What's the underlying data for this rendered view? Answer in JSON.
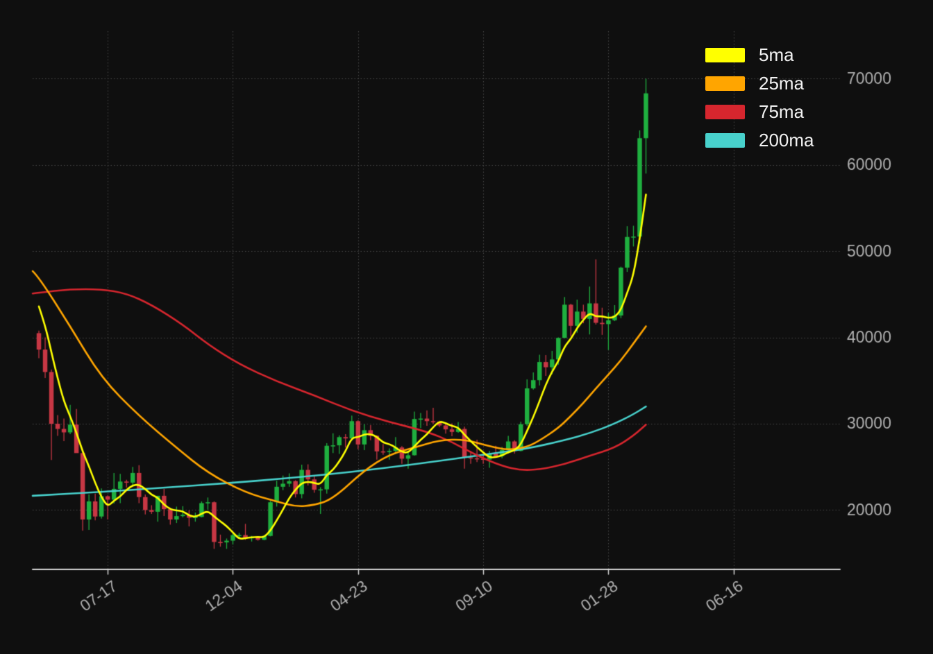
{
  "colors": {
    "background": "#0f0f0f",
    "grid": "#4a4a4a",
    "axis_spine": "#d4d4d4",
    "tick_label": "#b0b0b0",
    "legend_text": "#f2f2f2",
    "candle_up": "#1faf3f",
    "candle_down": "#c73744"
  },
  "chart_data": {
    "type": "candlestick",
    "title": "",
    "legend_position": "top-right",
    "x_axis": {
      "tick_labels": [
        "07-17",
        "12-04",
        "04-23",
        "09-10",
        "01-28",
        "06-16"
      ],
      "tick_indices": [
        11,
        31,
        51,
        71,
        91,
        111
      ],
      "index_range": [
        -1,
        128
      ],
      "tick_label_rotation_deg": 35
    },
    "y_axis": {
      "ticks": [
        20000,
        30000,
        40000,
        50000,
        60000,
        70000
      ],
      "range": [
        13200,
        75500
      ],
      "side": "right"
    },
    "candles": {
      "ohlc": [
        [
          40500,
          40800,
          37600,
          38600
        ],
        [
          38600,
          40000,
          35300,
          36000
        ],
        [
          36000,
          36300,
          25800,
          30000
        ],
        [
          30000,
          31000,
          28600,
          29400
        ],
        [
          29400,
          30600,
          28000,
          29000
        ],
        [
          29000,
          32200,
          28800,
          29900
        ],
        [
          29900,
          31700,
          26800,
          26600
        ],
        [
          26600,
          26800,
          17600,
          18900
        ],
        [
          18900,
          21800,
          17700,
          21000
        ],
        [
          21000,
          21900,
          18800,
          19250
        ],
        [
          19250,
          22500,
          19000,
          21600
        ],
        [
          21600,
          21700,
          18900,
          21200
        ],
        [
          21200,
          24300,
          20750,
          22450
        ],
        [
          22450,
          24200,
          20800,
          23300
        ],
        [
          23300,
          23500,
          22600,
          23175
        ],
        [
          23175,
          25000,
          22700,
          24300
        ],
        [
          24300,
          25200,
          20800,
          21500
        ],
        [
          21500,
          21800,
          19500,
          20000
        ],
        [
          20000,
          20550,
          19550,
          19800
        ],
        [
          19800,
          21650,
          18650,
          21650
        ],
        [
          21650,
          22450,
          19300,
          20100
        ],
        [
          20100,
          20150,
          18300,
          18900
        ],
        [
          18900,
          20400,
          18500,
          19300
        ],
        [
          19300,
          20450,
          19150,
          19450
        ],
        [
          19450,
          19950,
          18100,
          19100
        ],
        [
          19100,
          19700,
          18650,
          19200
        ],
        [
          19200,
          21000,
          19150,
          20800
        ],
        [
          20800,
          21450,
          20050,
          20900
        ],
        [
          20900,
          21000,
          15500,
          16300
        ],
        [
          16300,
          17150,
          15750,
          16250
        ],
        [
          16250,
          16700,
          15500,
          16450
        ],
        [
          16450,
          17400,
          16000,
          17100
        ],
        [
          17100,
          17350,
          16700,
          17100
        ],
        [
          17100,
          18400,
          16550,
          16750
        ],
        [
          16750,
          17000,
          16350,
          16850
        ],
        [
          16850,
          16970,
          16450,
          16550
        ],
        [
          16550,
          17050,
          16500,
          17000
        ],
        [
          17000,
          21050,
          16950,
          20900
        ],
        [
          20900,
          23400,
          20400,
          22700
        ],
        [
          22700,
          24000,
          22300,
          23050
        ],
        [
          23050,
          24250,
          22700,
          23350
        ],
        [
          23350,
          23450,
          21450,
          21850
        ],
        [
          21850,
          25250,
          21350,
          24650
        ],
        [
          24650,
          25300,
          22850,
          23550
        ],
        [
          23550,
          23900,
          22000,
          22350
        ],
        [
          22350,
          22650,
          19550,
          22400
        ],
        [
          22400,
          27750,
          21900,
          27450
        ],
        [
          27450,
          28900,
          26600,
          27500
        ],
        [
          27500,
          28650,
          26500,
          28450
        ],
        [
          28450,
          28800,
          27250,
          28300
        ],
        [
          28300,
          30950,
          28100,
          30300
        ],
        [
          30300,
          30400,
          27050,
          27600
        ],
        [
          27600,
          29950,
          26950,
          29250
        ],
        [
          29250,
          29850,
          28100,
          28600
        ],
        [
          28600,
          28650,
          25850,
          26800
        ],
        [
          26800,
          27650,
          26400,
          26750
        ],
        [
          26750,
          27150,
          25850,
          26850
        ],
        [
          26850,
          28450,
          26500,
          27250
        ],
        [
          27250,
          27400,
          25350,
          25950
        ],
        [
          25950,
          26800,
          24800,
          26350
        ],
        [
          26350,
          31400,
          26300,
          30550
        ],
        [
          30550,
          31250,
          29500,
          30600
        ],
        [
          30600,
          31550,
          29750,
          30300
        ],
        [
          30300,
          31850,
          30000,
          30250
        ],
        [
          30250,
          30350,
          29600,
          29800
        ],
        [
          29800,
          30100,
          28850,
          29350
        ],
        [
          29350,
          30050,
          28550,
          29050
        ],
        [
          29050,
          30200,
          28950,
          29400
        ],
        [
          29400,
          29650,
          24800,
          26100
        ],
        [
          26100,
          26850,
          25350,
          26000
        ],
        [
          26000,
          28150,
          25550,
          25950
        ],
        [
          25950,
          26450,
          25350,
          25850
        ],
        [
          25850,
          26850,
          24900,
          26550
        ],
        [
          26550,
          27450,
          26100,
          26250
        ],
        [
          26250,
          27300,
          26000,
          26950
        ],
        [
          26950,
          28600,
          26550,
          27950
        ],
        [
          27950,
          28100,
          26550,
          26850
        ],
        [
          26850,
          30250,
          26800,
          29950
        ],
        [
          29950,
          35150,
          29750,
          34100
        ],
        [
          34100,
          35950,
          33950,
          35050
        ],
        [
          35050,
          38000,
          34450,
          37150
        ],
        [
          37150,
          37950,
          35550,
          36550
        ],
        [
          36550,
          38450,
          35750,
          37450
        ],
        [
          37450,
          40000,
          36850,
          39950
        ],
        [
          39950,
          44700,
          39950,
          43800
        ],
        [
          43800,
          43900,
          40150,
          41350
        ],
        [
          41350,
          44400,
          40550,
          43000
        ],
        [
          43000,
          43800,
          41650,
          42150
        ],
        [
          42150,
          45900,
          40350,
          43950
        ],
        [
          43950,
          49050,
          41500,
          41700
        ],
        [
          41700,
          43450,
          40300,
          41550
        ],
        [
          41550,
          42850,
          38550,
          42000
        ],
        [
          42000,
          43750,
          41900,
          42550
        ],
        [
          42550,
          48200,
          42250,
          48100
        ],
        [
          48100,
          52900,
          47600,
          51650
        ],
        [
          51650,
          52950,
          50550,
          51700
        ],
        [
          51700,
          64000,
          50900,
          63100
        ],
        [
          63100,
          69990,
          59000,
          68300
        ]
      ]
    },
    "ma_series": [
      {
        "name": "5ma",
        "color": "#ffff00",
        "width": 2.6,
        "values_start_index": 0,
        "values": [
          43600,
          41440,
          38280,
          35260,
          32600,
          30860,
          28980,
          26760,
          25080,
          23130,
          21470,
          20390,
          21100,
          21560,
          22345,
          22885,
          22945,
          22455,
          21755,
          21450,
          20610,
          20090,
          19950,
          19880,
          19370,
          19190,
          19570,
          19890,
          19260,
          18690,
          18140,
          17400,
          16640,
          16730,
          16850,
          16870,
          16850,
          17610,
          18800,
          20040,
          21400,
          22370,
          23120,
          23290,
          23150,
          22960,
          24080,
          24650,
          25630,
          26820,
          28400,
          28430,
          28780,
          28810,
          28510,
          27800,
          27650,
          27250,
          26720,
          26630,
          27390,
          28140,
          28750,
          29610,
          30300,
          30060,
          29750,
          29570,
          28740,
          27980,
          27300,
          26660,
          26090,
          26120,
          26310,
          26710,
          26910,
          27590,
          29160,
          30780,
          32620,
          34560,
          36060,
          37230,
          38980,
          39820,
          41110,
          42050,
          42850,
          42430,
          42470,
          42270,
          42350,
          43180,
          45170,
          47200,
          51420,
          56570
        ]
      },
      {
        "name": "25ma",
        "color": "#ffa500",
        "width": 2.6,
        "points": [
          [
            -1,
            47700
          ],
          [
            0,
            47000
          ],
          [
            5,
            41300
          ],
          [
            10,
            35300
          ],
          [
            16,
            30900
          ],
          [
            22,
            27200
          ],
          [
            27,
            24300
          ],
          [
            33,
            22000
          ],
          [
            38,
            21000
          ],
          [
            41,
            20400
          ],
          [
            44,
            20550
          ],
          [
            47,
            21300
          ],
          [
            52,
            24600
          ],
          [
            56,
            26450
          ],
          [
            60,
            27250
          ],
          [
            64,
            28100
          ],
          [
            68,
            28200
          ],
          [
            72,
            27400
          ],
          [
            75,
            26950
          ],
          [
            78,
            27300
          ],
          [
            80,
            28050
          ],
          [
            83,
            29500
          ],
          [
            85,
            30900
          ],
          [
            87,
            32400
          ],
          [
            89,
            34100
          ],
          [
            91,
            35700
          ],
          [
            93,
            37350
          ],
          [
            95,
            39300
          ],
          [
            97,
            41300
          ]
        ]
      },
      {
        "name": "75ma",
        "color": "#d6262e",
        "width": 2.6,
        "points": [
          [
            -1,
            45100
          ],
          [
            0,
            45200
          ],
          [
            5,
            45600
          ],
          [
            10,
            45600
          ],
          [
            14,
            45100
          ],
          [
            18,
            43800
          ],
          [
            23,
            41500
          ],
          [
            27,
            39200
          ],
          [
            32,
            36900
          ],
          [
            38,
            34900
          ],
          [
            44,
            33300
          ],
          [
            50,
            31500
          ],
          [
            56,
            30200
          ],
          [
            62,
            29100
          ],
          [
            66,
            27900
          ],
          [
            70,
            26300
          ],
          [
            74,
            25100
          ],
          [
            77,
            24600
          ],
          [
            80,
            24700
          ],
          [
            84,
            25300
          ],
          [
            88,
            26300
          ],
          [
            92,
            27200
          ],
          [
            95,
            28600
          ],
          [
            97,
            29900
          ]
        ]
      },
      {
        "name": "200ma",
        "color": "#48d1cc",
        "width": 2.6,
        "points": [
          [
            -1,
            21650
          ],
          [
            0,
            21700
          ],
          [
            10,
            22100
          ],
          [
            20,
            22600
          ],
          [
            30,
            23100
          ],
          [
            40,
            23700
          ],
          [
            50,
            24400
          ],
          [
            60,
            25300
          ],
          [
            70,
            26300
          ],
          [
            78,
            27100
          ],
          [
            84,
            28100
          ],
          [
            88,
            28900
          ],
          [
            92,
            30000
          ],
          [
            95,
            31100
          ],
          [
            97,
            32000
          ]
        ]
      }
    ]
  }
}
